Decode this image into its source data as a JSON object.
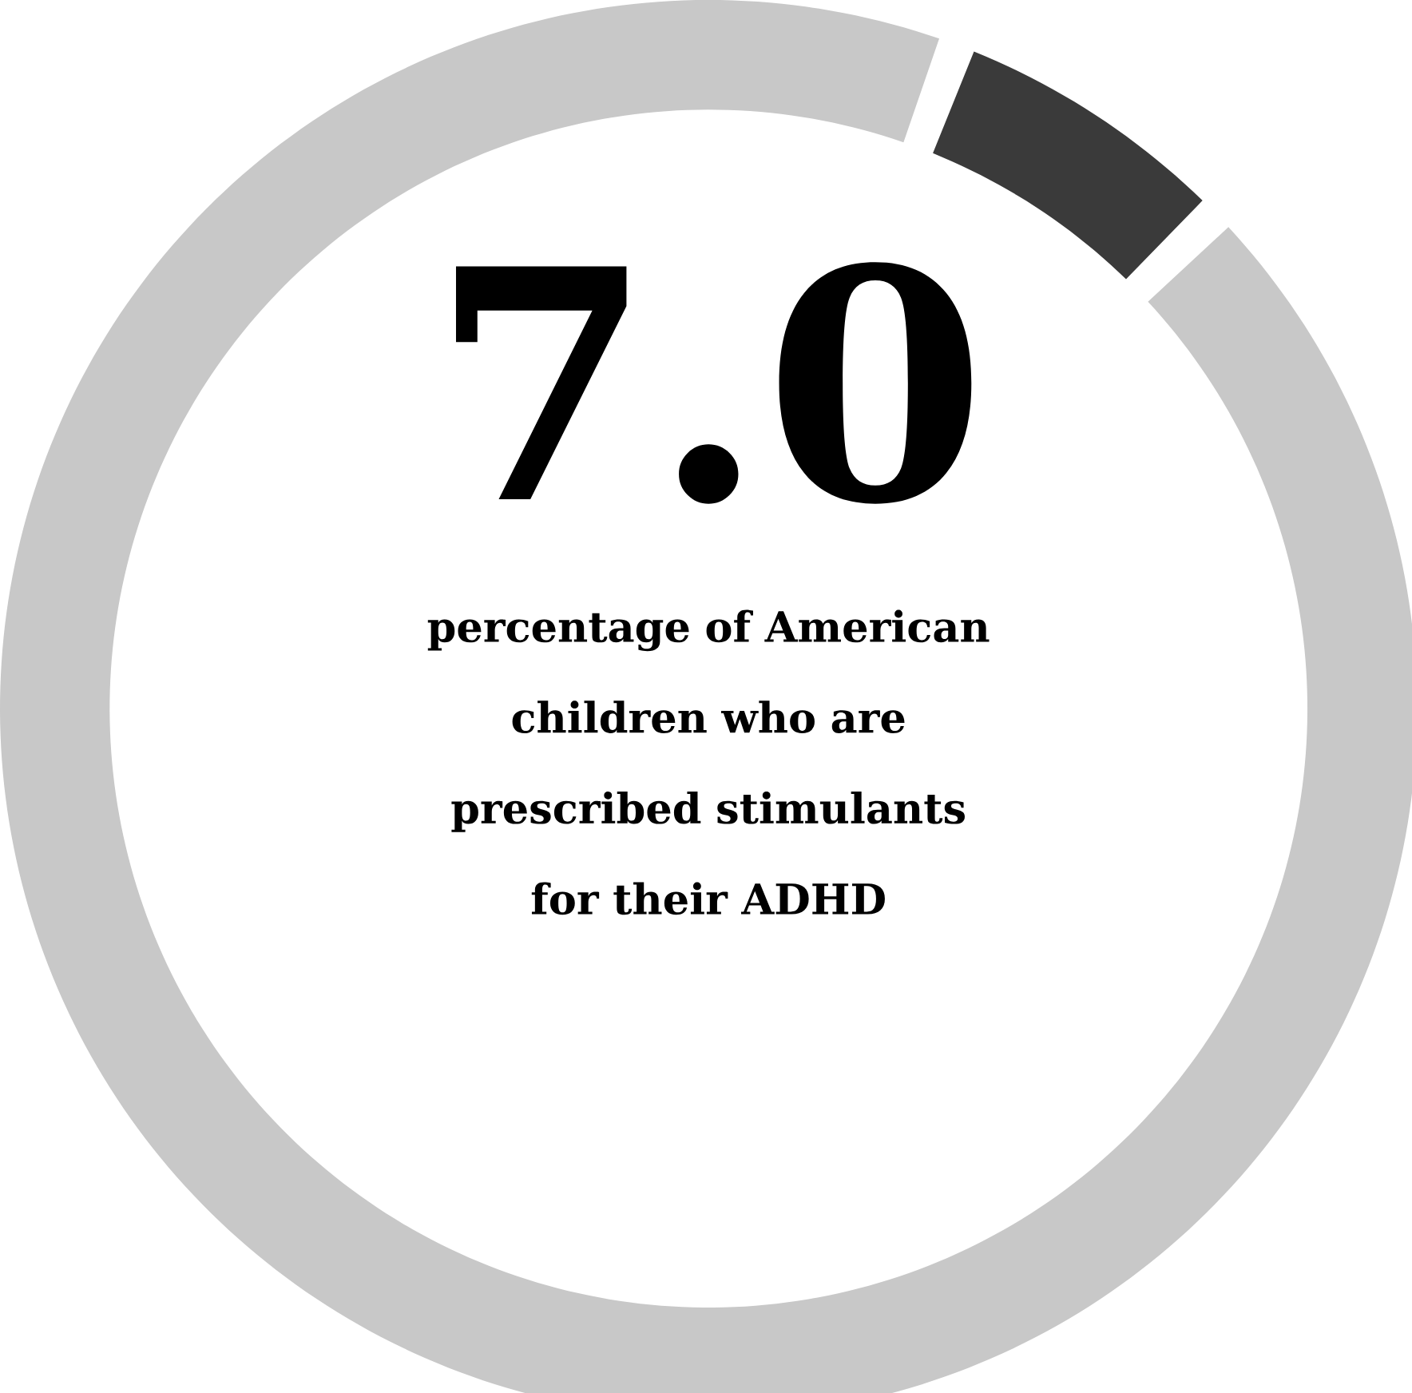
{
  "chart_data": {
    "type": "donut",
    "categories": [
      null,
      null
    ],
    "values": [
      7.0,
      93.0
    ],
    "colors": [
      "#3a3a3a",
      "#c8c8c8"
    ],
    "title": "7.0",
    "subtitle": "percentage of American children who are prescribed stimulants for their ADHD"
  }
}
